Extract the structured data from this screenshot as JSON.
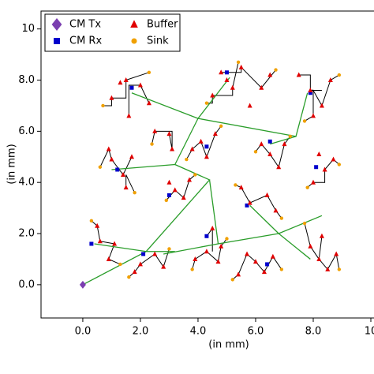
{
  "chart_data": {
    "type": "scatter",
    "xlabel": "(in mm)",
    "ylabel": "(in mm)",
    "xlim": [
      -1.45,
      10.0
    ],
    "ylim": [
      -1.3,
      10.7
    ],
    "xticks": [
      {
        "value": 0,
        "label": "0.0"
      },
      {
        "value": 2,
        "label": "2.0"
      },
      {
        "value": 4,
        "label": "4.0"
      },
      {
        "value": 6,
        "label": "6.0"
      },
      {
        "value": 8,
        "label": "8.0"
      },
      10
    ],
    "yticks": [
      {
        "value": 0,
        "label": "0.0"
      },
      {
        "value": 2,
        "label": "2.0"
      },
      {
        "value": 4,
        "label": "4.0"
      },
      {
        "value": 6,
        "label": "6.0"
      },
      {
        "value": 8,
        "label": "8.0"
      },
      10
    ],
    "legend": "upper left",
    "series": [
      {
        "name": "CM Tx",
        "color": "#7b3fb0",
        "marker": "diamond",
        "x": [
          0
        ],
        "y": [
          0
        ]
      },
      {
        "name": "CM Rx",
        "color": "#0000cc",
        "marker": "square",
        "x": [
          0.3,
          2.1,
          1.2,
          3.0,
          4.3,
          4.3,
          6.5,
          5.7,
          6.4,
          8.1,
          7.9,
          5.0,
          1.7
        ],
        "y": [
          1.6,
          1.2,
          4.5,
          3.5,
          1.9,
          5.4,
          5.6,
          3.1,
          0.8,
          4.6,
          7.5,
          8.3,
          7.7
        ]
      },
      {
        "name": "Buffer",
        "color": "#e00000",
        "marker": "triangle",
        "x": [
          1.0,
          1.5,
          2.0,
          1.6,
          2.3,
          1.3,
          4.8,
          5.2,
          5.5,
          4.5,
          5.0,
          6.2,
          5.8,
          6.5,
          7.9,
          8.3,
          8.0,
          8.6,
          7.5,
          2.5,
          3.1,
          3.0,
          4.1,
          4.3,
          3.8,
          4.6,
          6.5,
          6.8,
          6.2,
          7.0,
          1.0,
          1.4,
          1.7,
          1.5,
          0.9,
          3.2,
          3.5,
          3.0,
          3.7,
          8.4,
          8.0,
          8.7,
          8.2,
          5.8,
          6.4,
          5.5,
          6.7,
          0.6,
          0.9,
          0.5,
          1.1,
          2.0,
          2.5,
          1.8,
          2.8,
          4.3,
          4.7,
          3.9,
          4.5,
          4.8,
          6.0,
          6.3,
          5.7,
          6.6,
          5.4,
          8.2,
          8.5,
          7.9,
          8.8,
          8.3
        ],
        "y": [
          7.3,
          8.0,
          7.8,
          6.6,
          7.1,
          7.9,
          8.3,
          7.7,
          8.5,
          7.4,
          8.0,
          7.7,
          7.0,
          8.2,
          7.6,
          7.0,
          6.6,
          8.0,
          8.2,
          6.0,
          5.3,
          5.9,
          5.6,
          5.0,
          5.3,
          5.9,
          5.1,
          4.6,
          5.5,
          5.5,
          4.9,
          4.3,
          5.0,
          3.8,
          5.3,
          3.7,
          3.4,
          4.0,
          4.1,
          4.5,
          4.0,
          4.9,
          5.1,
          3.2,
          3.5,
          3.8,
          2.9,
          1.7,
          1.0,
          2.3,
          1.6,
          0.8,
          1.2,
          0.5,
          0.7,
          1.3,
          0.9,
          1.0,
          2.2,
          1.5,
          0.9,
          0.5,
          1.2,
          1.1,
          0.4,
          1.0,
          0.6,
          1.5,
          1.2,
          1.9
        ]
      },
      {
        "name": "Sink",
        "color": "#f0a000",
        "marker": "circle",
        "x": [
          0.7,
          2.3,
          5.4,
          4.3,
          6.7,
          8.9,
          7.7,
          2.4,
          4.8,
          3.6,
          7.2,
          6.0,
          0.6,
          1.8,
          2.9,
          3.9,
          8.9,
          7.8,
          5.3,
          6.9,
          0.3,
          1.3,
          1.6,
          3.0,
          3.8,
          5.0,
          5.2,
          6.9,
          8.9,
          7.7
        ],
        "y": [
          7.0,
          8.3,
          8.7,
          7.1,
          8.4,
          8.2,
          6.4,
          5.5,
          6.2,
          4.9,
          5.8,
          5.2,
          4.6,
          3.6,
          3.3,
          4.3,
          4.7,
          3.8,
          3.9,
          2.6,
          2.5,
          0.8,
          0.3,
          1.4,
          0.6,
          1.8,
          0.2,
          0.6,
          0.6,
          2.4
        ]
      },
      {
        "color": "#000000",
        "mode": "line",
        "x": [
          0.7,
          1.0,
          1.0,
          1.5,
          1.5,
          2.3,
          null,
          1.6,
          1.6,
          2.0,
          2.3,
          null,
          4.3,
          4.5,
          4.5,
          5.2,
          5.2,
          5.4,
          null,
          4.8,
          5.5,
          5.5,
          6.2,
          6.7,
          null,
          7.7,
          8.0,
          8.0,
          8.3,
          8.6,
          8.9,
          null,
          7.5,
          7.9,
          7.9,
          8.3,
          null,
          2.4,
          2.5,
          3.1,
          3.1,
          3.0,
          null,
          3.6,
          3.8,
          4.1,
          4.3,
          4.6,
          4.8,
          null,
          6.0,
          6.2,
          6.5,
          6.8,
          7.0,
          7.2,
          null,
          0.6,
          0.9,
          1.0,
          1.4,
          1.7,
          null,
          1.5,
          1.5,
          1.8,
          null,
          2.9,
          3.2,
          3.5,
          3.7,
          3.9,
          null,
          7.8,
          8.0,
          8.4,
          8.4,
          8.7,
          8.9,
          null,
          5.3,
          5.5,
          5.8,
          6.4,
          6.7,
          6.9,
          null,
          0.3,
          0.5,
          0.6,
          1.1,
          0.9,
          1.3,
          null,
          1.6,
          1.8,
          2.0,
          2.5,
          2.8,
          3.0,
          null,
          3.8,
          3.9,
          4.3,
          4.7,
          4.8,
          5.0,
          null,
          4.5,
          4.5,
          4.3,
          null,
          5.2,
          5.4,
          5.7,
          6.0,
          6.3,
          6.6,
          6.9,
          null,
          7.7,
          7.9,
          8.2,
          8.3,
          null,
          8.2,
          8.5,
          8.8,
          8.9
        ],
        "y": [
          7.0,
          7.0,
          7.3,
          7.3,
          8.0,
          8.3,
          null,
          6.6,
          7.8,
          7.8,
          7.1,
          null,
          7.1,
          7.1,
          7.4,
          7.4,
          7.7,
          8.7,
          null,
          8.3,
          8.3,
          8.5,
          7.7,
          8.4,
          null,
          6.4,
          6.6,
          7.6,
          7.0,
          8.0,
          8.2,
          null,
          8.2,
          8.2,
          7.6,
          7.6,
          null,
          5.5,
          6.0,
          6.0,
          5.3,
          5.9,
          null,
          4.9,
          5.3,
          5.6,
          5.0,
          5.9,
          6.2,
          null,
          5.2,
          5.5,
          5.1,
          4.6,
          5.5,
          5.8,
          null,
          4.6,
          5.3,
          4.9,
          4.3,
          5.0,
          null,
          3.8,
          4.3,
          3.6,
          null,
          3.3,
          3.7,
          3.4,
          4.1,
          4.3,
          null,
          3.8,
          4.0,
          4.0,
          4.5,
          4.9,
          4.7,
          null,
          3.9,
          3.8,
          3.2,
          3.5,
          2.9,
          2.6,
          null,
          2.5,
          2.3,
          1.7,
          1.6,
          1.0,
          0.8,
          null,
          0.3,
          0.5,
          0.8,
          1.2,
          0.7,
          1.4,
          null,
          0.6,
          1.0,
          1.3,
          0.9,
          1.5,
          1.8,
          null,
          1.3,
          2.2,
          1.9,
          null,
          0.2,
          0.4,
          1.2,
          0.9,
          0.5,
          1.1,
          0.6,
          null,
          2.4,
          1.5,
          1.0,
          1.9,
          null,
          1.0,
          0.6,
          1.2,
          0.6
        ]
      },
      {
        "color": "#2a9d2a",
        "mode": "line",
        "x": [
          0,
          2.2,
          4.4,
          3.2,
          4.0,
          1.7,
          null,
          4.0,
          5.1,
          null,
          4.0,
          7.4,
          7.8,
          null,
          7.4,
          6.5,
          null,
          3.2,
          1.0,
          null,
          4.4,
          4.7,
          6.8,
          8.3,
          null,
          6.8,
          7.9,
          null,
          6.8,
          5.8,
          null,
          0.4,
          2.2,
          3.2,
          null,
          2.8,
          4.7
        ],
        "y": [
          0,
          1.3,
          4.1,
          4.7,
          6.5,
          7.5,
          null,
          6.5,
          8.1,
          null,
          6.5,
          5.8,
          7.5,
          null,
          5.8,
          5.5,
          null,
          4.7,
          4.5,
          null,
          4.1,
          1.6,
          2.0,
          2.7,
          null,
          2.0,
          1.0,
          null,
          2.0,
          3.1,
          null,
          1.6,
          1.3,
          1.3,
          null,
          1.2,
          1.6
        ]
      }
    ]
  }
}
